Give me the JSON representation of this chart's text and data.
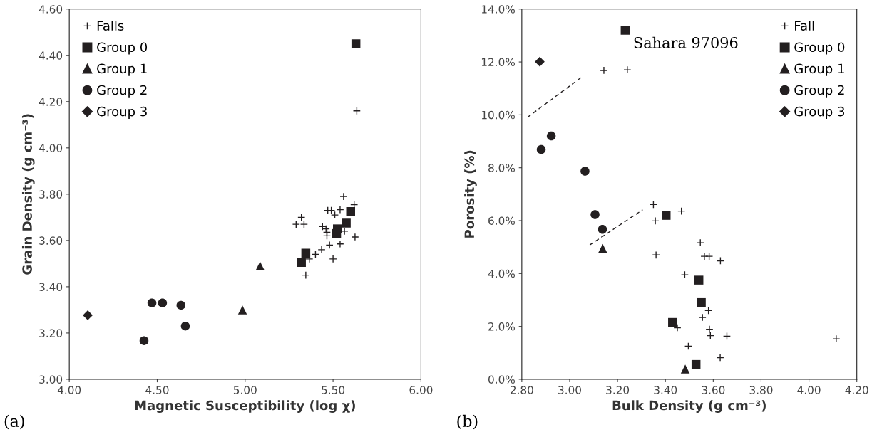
{
  "chart_data": [
    {
      "type": "scatter",
      "xlabel": "Magnetic Susceptibility (log χ)",
      "ylabel": "Grain Density (g cm⁻³)",
      "xlim": [
        4.0,
        6.0
      ],
      "xticks": [
        {
          "value": 4.0,
          "label": "4.00"
        },
        {
          "value": 4.5,
          "label": "4.50"
        },
        {
          "value": 5.0,
          "label": "5.00"
        },
        {
          "value": 5.5,
          "label": "5.50"
        },
        {
          "value": 6.0,
          "label": "6.00"
        }
      ],
      "ylim": [
        3.0,
        4.6
      ],
      "yticks": [
        {
          "value": 3.0,
          "label": "3.00"
        },
        {
          "value": 3.2,
          "label": "3.20"
        },
        {
          "value": 3.4,
          "label": "3.40"
        },
        {
          "value": 3.6,
          "label": "3.60"
        },
        {
          "value": 3.8,
          "label": "3.80"
        },
        {
          "value": 4.0,
          "label": "4.00"
        },
        {
          "value": 4.2,
          "label": "4.20"
        },
        {
          "value": 4.4,
          "label": "4.40"
        },
        {
          "value": 4.6,
          "label": "4.60"
        }
      ],
      "grid": false,
      "legend": "top left",
      "annotations": [
        "(a)"
      ],
      "series": [
        {
          "name": "Falls",
          "color": "#231f20",
          "marker": "cross",
          "x": [
            5.635,
            5.56,
            5.62,
            5.47,
            5.49,
            5.54,
            5.51,
            5.32,
            5.29,
            5.335,
            5.44,
            5.46,
            5.465,
            5.465,
            5.565,
            5.625,
            5.48,
            5.54,
            5.435,
            5.4,
            5.365,
            5.5,
            5.345
          ],
          "values": [
            4.16,
            3.79,
            3.755,
            3.73,
            3.73,
            3.733,
            3.71,
            3.7,
            3.67,
            3.67,
            3.66,
            3.65,
            3.635,
            3.62,
            3.64,
            3.615,
            3.58,
            3.585,
            3.56,
            3.54,
            3.52,
            3.52,
            3.45
          ]
        },
        {
          "name": "Group 0",
          "color": "#231f20",
          "marker": "square",
          "x": [
            5.63,
            5.6,
            5.575,
            5.525,
            5.52,
            5.345,
            5.32
          ],
          "values": [
            4.45,
            3.725,
            3.675,
            3.65,
            3.63,
            3.545,
            3.505
          ]
        },
        {
          "name": "Group 1",
          "color": "#231f20",
          "marker": "triangle",
          "x": [
            5.085,
            4.985
          ],
          "values": [
            3.49,
            3.3
          ]
        },
        {
          "name": "Group 2",
          "color": "#231f20",
          "marker": "circle",
          "x": [
            4.47,
            4.53,
            4.635,
            4.66,
            4.425
          ],
          "values": [
            3.33,
            3.33,
            3.32,
            3.23,
            3.167
          ]
        },
        {
          "name": "Group 3",
          "color": "#231f20",
          "marker": "diamond",
          "x": [
            4.105
          ],
          "values": [
            3.277
          ]
        }
      ]
    },
    {
      "type": "scatter",
      "xlabel": "Bulk Density (g cm⁻³)",
      "ylabel": "Porosity (%)",
      "xlim": [
        2.8,
        4.2
      ],
      "xticks": [
        {
          "value": 2.8,
          "label": "2.80"
        },
        {
          "value": 3.0,
          "label": "3.00"
        },
        {
          "value": 3.2,
          "label": "3.20"
        },
        {
          "value": 3.4,
          "label": "3.40"
        },
        {
          "value": 3.6,
          "label": "3.60"
        },
        {
          "value": 3.8,
          "label": "3.80"
        },
        {
          "value": 4.0,
          "label": "4.00"
        },
        {
          "value": 4.2,
          "label": "4.20"
        }
      ],
      "ylim": [
        0,
        14
      ],
      "yticks": [
        {
          "value": 0,
          "label": "0.0%"
        },
        {
          "value": 2,
          "label": "2.0%"
        },
        {
          "value": 4,
          "label": "4.0%"
        },
        {
          "value": 6,
          "label": "6.0%"
        },
        {
          "value": 8,
          "label": "8.0%"
        },
        {
          "value": 10,
          "label": "10.0%"
        },
        {
          "value": 12,
          "label": "12.0%"
        },
        {
          "value": 14,
          "label": "14.0%"
        }
      ],
      "grid": false,
      "legend": "top right",
      "annotations": [
        {
          "text": "Sahara 97096",
          "x": 3.232,
          "y": 13.2
        },
        "(b)"
      ],
      "series": [
        {
          "name": "Fall",
          "color": "#231f20",
          "marker": "cross",
          "x": [
            3.143,
            3.241,
            3.35,
            3.467,
            3.358,
            3.361,
            3.481,
            3.546,
            3.563,
            3.583,
            3.63,
            3.58,
            3.555,
            3.584,
            3.588,
            3.657,
            4.114,
            3.496,
            3.629,
            3.45
          ],
          "values": [
            11.68,
            11.7,
            6.61,
            6.36,
            5.99,
            4.7,
            3.95,
            5.16,
            4.65,
            4.65,
            4.48,
            2.6,
            2.34,
            1.89,
            1.65,
            1.63,
            1.53,
            1.25,
            0.82,
            1.95
          ]
        },
        {
          "name": "Group 0",
          "color": "#231f20",
          "marker": "square",
          "x": [
            3.232,
            3.403,
            3.54,
            3.55,
            3.43,
            3.528
          ],
          "values": [
            13.2,
            6.2,
            3.75,
            2.9,
            2.15,
            0.56
          ]
        },
        {
          "name": "Group 1",
          "color": "#231f20",
          "marker": "triangle",
          "x": [
            3.138,
            3.483
          ],
          "values": [
            4.95,
            0.39
          ]
        },
        {
          "name": "Group 2",
          "color": "#231f20",
          "marker": "circle",
          "x": [
            2.923,
            2.881,
            3.064,
            3.106,
            3.137
          ],
          "values": [
            9.2,
            8.69,
            7.87,
            6.23,
            5.67
          ]
        },
        {
          "name": "Group 3",
          "color": "#231f20",
          "marker": "diamond",
          "x": [
            2.875
          ],
          "values": [
            12.01
          ]
        },
        {
          "type": "line",
          "color": "#231f20",
          "line_style": "dashed",
          "marker": "none",
          "x": [
            2.824,
            3.052
          ],
          "values": [
            9.91,
            11.44
          ]
        },
        {
          "type": "line",
          "color": "#231f20",
          "line_style": "dashed",
          "marker": "none",
          "x": [
            3.084,
            3.305
          ],
          "values": [
            5.08,
            6.41
          ]
        }
      ]
    }
  ]
}
